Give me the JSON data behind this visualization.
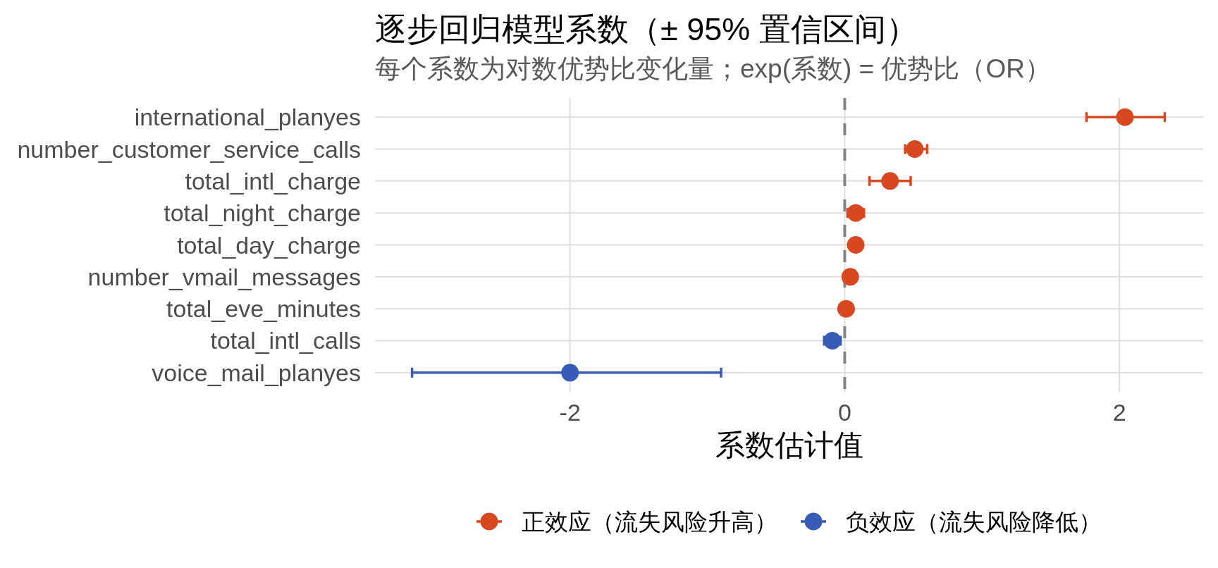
{
  "chart_data": {
    "type": "scatter",
    "title": "逐步回归模型系数（± 95% 置信区间）",
    "subtitle": "每个系数为对数优势比变化量；exp(系数) = 优势比（OR）",
    "xlabel": "系数估计值",
    "orientation": "horizontal",
    "categories": [
      "international_planyes",
      "number_customer_service_calls",
      "total_intl_charge",
      "total_night_charge",
      "total_day_charge",
      "number_vmail_messages",
      "total_eve_minutes",
      "total_intl_calls",
      "voice_mail_planyes"
    ],
    "series": [
      {
        "name": "正效应（流失风险升高）",
        "color": "#d84820",
        "values": [
          2.04,
          0.51,
          0.33,
          0.08,
          0.08,
          0.04,
          0.01,
          null,
          null
        ],
        "errors": [
          [
            1.76,
            2.33
          ],
          [
            0.44,
            0.6
          ],
          [
            0.18,
            0.48
          ],
          [
            0.02,
            0.14
          ],
          null,
          null,
          null,
          null,
          null
        ]
      },
      {
        "name": "负效应（流失风险降低）",
        "color": "#375bb7",
        "values": [
          null,
          null,
          null,
          null,
          null,
          null,
          null,
          -0.09,
          -2.0
        ],
        "errors": [
          null,
          null,
          null,
          null,
          null,
          null,
          null,
          [
            -0.15,
            -0.03
          ],
          [
            -3.15,
            -0.9
          ]
        ]
      }
    ],
    "xlim": [
      -3.42,
      2.61
    ],
    "xticks": [
      -2,
      0,
      2
    ],
    "ref_lines": [
      {
        "axis": "x",
        "value": 0,
        "color": "#858585",
        "line_style": "dashed"
      }
    ],
    "grid": true,
    "legend": "bottom",
    "marker": "circle"
  }
}
